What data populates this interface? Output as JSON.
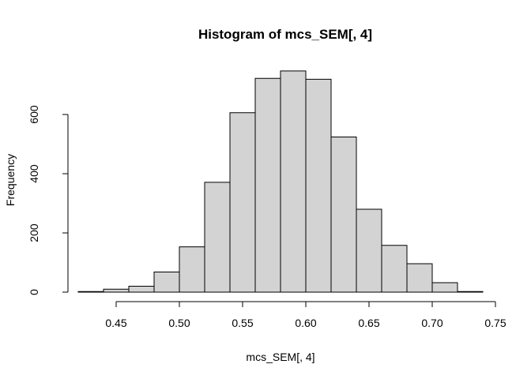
{
  "chart_data": {
    "type": "bar",
    "title": "Histogram of mcs_SEM[, 4]",
    "xlabel": "mcs_SEM[, 4]",
    "ylabel": "Frequency",
    "bin_edges": [
      0.42,
      0.44,
      0.46,
      0.48,
      0.5,
      0.52,
      0.54,
      0.56,
      0.58,
      0.6,
      0.62,
      0.64,
      0.66,
      0.68,
      0.7,
      0.72,
      0.74
    ],
    "values": [
      2,
      10,
      20,
      68,
      153,
      371,
      606,
      722,
      747,
      719,
      524,
      280,
      158,
      96,
      32,
      2
    ],
    "xlim": [
      0.42,
      0.74
    ],
    "ylim": [
      0,
      750
    ],
    "x_ticks": [
      "0.45",
      "0.50",
      "0.55",
      "0.60",
      "0.65",
      "0.70",
      "0.75"
    ],
    "y_ticks": [
      "0",
      "200",
      "400",
      "600"
    ],
    "bar_color": "#d3d3d3",
    "grid": false
  }
}
